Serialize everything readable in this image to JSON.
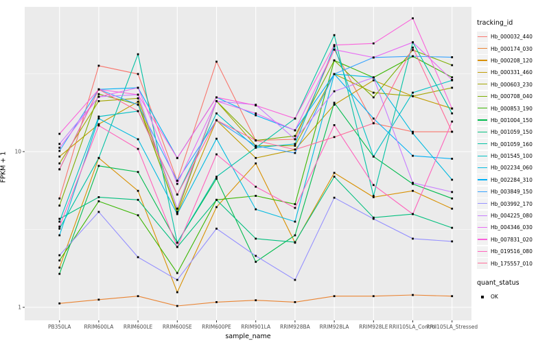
{
  "chart_data": {
    "type": "line",
    "title": "",
    "xlabel": "sample_name",
    "ylabel": "FPKM + 1",
    "y_scale": "log10",
    "y_ticks": [
      1,
      10
    ],
    "y_minor_gridlines": [
      3.162,
      31.62
    ],
    "ylim": [
      1,
      85
    ],
    "grid": true,
    "legend_position": "right",
    "legend_title": "tracking_id",
    "point_marker": "black-square",
    "categories": [
      "PB350LA",
      "RRIM600LA",
      "RRIM600LE",
      "RRIM600SE",
      "RRIM600PE",
      "RRIM901LA",
      "RRIM928BA",
      "RRIM928LA",
      "RRIM928LE",
      "RRII105LA_Control",
      "RRII105LA_Stressed"
    ],
    "series": [
      {
        "name": "Hb_000032_440",
        "color": "#F8766D",
        "values": [
          5.0,
          35.6,
          31.5,
          6.5,
          37.8,
          11.8,
          12.0,
          45.2,
          15.2,
          13.4,
          13.4
        ]
      },
      {
        "name": "Hb_000174_030",
        "color": "#EA8331",
        "values": [
          1.06,
          1.12,
          1.18,
          1.02,
          1.08,
          1.11,
          1.08,
          1.18,
          1.18,
          1.2,
          1.18
        ]
      },
      {
        "name": "Hb_000208_120",
        "color": "#D89000",
        "values": [
          1.8,
          9.1,
          5.6,
          1.25,
          4.4,
          8.4,
          2.6,
          7.3,
          5.1,
          5.6,
          4.3
        ]
      },
      {
        "name": "Hb_000331_460",
        "color": "#C09B00",
        "values": [
          9.3,
          15.0,
          20.9,
          4.0,
          15.9,
          9.1,
          10.3,
          20.0,
          28.7,
          22.7,
          18.9
        ]
      },
      {
        "name": "Hb_000603_230",
        "color": "#A3A500",
        "values": [
          8.4,
          21.1,
          22.0,
          4.3,
          21.1,
          10.9,
          10.9,
          31.5,
          23.9,
          22.7,
          25.7
        ]
      },
      {
        "name": "Hb_000708_040",
        "color": "#7CAE00",
        "values": [
          4.5,
          23.4,
          20.1,
          4.1,
          21.1,
          11.8,
          12.6,
          38.5,
          22.3,
          44.9,
          35.9
        ]
      },
      {
        "name": "Hb_000853_190",
        "color": "#39B600",
        "values": [
          2.0,
          4.8,
          3.9,
          1.66,
          4.9,
          5.2,
          4.6,
          38.5,
          29.9,
          40.9,
          30.0
        ]
      },
      {
        "name": "Hb_001004_150",
        "color": "#00BB4E",
        "values": [
          1.64,
          8.1,
          7.4,
          2.6,
          6.7,
          1.96,
          2.9,
          20.6,
          9.3,
          6.2,
          5.0
        ]
      },
      {
        "name": "Hb_001059_150",
        "color": "#00BF7D",
        "values": [
          3.7,
          5.1,
          4.9,
          2.44,
          4.9,
          2.76,
          2.62,
          6.9,
          3.77,
          3.97,
          3.24
        ]
      },
      {
        "name": "Hb_001059_160",
        "color": "#00C1A3",
        "values": [
          3.2,
          9.1,
          42.2,
          2.6,
          6.9,
          10.6,
          16.3,
          56.0,
          5.2,
          50.3,
          17.6
        ]
      },
      {
        "name": "Hb_001545_100",
        "color": "#00BFC4",
        "values": [
          3.55,
          16.8,
          18.2,
          5.3,
          17.6,
          10.6,
          11.2,
          47.4,
          9.3,
          23.9,
          28.7
        ]
      },
      {
        "name": "Hb_002234_060",
        "color": "#00BAE0",
        "values": [
          2.9,
          16.3,
          12.0,
          3.97,
          12.1,
          4.26,
          3.55,
          31.5,
          30.0,
          13.1,
          6.6
        ]
      },
      {
        "name": "Hb_002284_310",
        "color": "#00B0F6",
        "values": [
          7.7,
          25.1,
          25.7,
          9.1,
          22.3,
          17.1,
          13.7,
          31.5,
          16.3,
          9.4,
          9.0
        ]
      },
      {
        "name": "Hb_003849_150",
        "color": "#35A2FF",
        "values": [
          10.1,
          25.1,
          20.0,
          6.5,
          15.9,
          10.9,
          9.8,
          31.5,
          40.2,
          40.9,
          40.4
        ]
      },
      {
        "name": "Hb_003992_170",
        "color": "#9590FF",
        "values": [
          2.16,
          4.1,
          2.1,
          1.5,
          3.2,
          2.14,
          1.5,
          5.06,
          3.7,
          2.76,
          2.65
        ]
      },
      {
        "name": "Hb_004225_080",
        "color": "#C77CFF",
        "values": [
          11.2,
          22.5,
          23.2,
          4.3,
          21.1,
          20.0,
          12.0,
          24.4,
          29.9,
          6.3,
          5.5
        ]
      },
      {
        "name": "Hb_004346_030",
        "color": "#E76BF3",
        "values": [
          10.6,
          22.5,
          25.7,
          6.2,
          21.1,
          17.6,
          13.7,
          45.2,
          40.2,
          50.3,
          28.9
        ]
      },
      {
        "name": "Hb_007831_020",
        "color": "#FA62DB",
        "values": [
          13.0,
          25.1,
          23.2,
          9.1,
          22.3,
          19.8,
          16.3,
          48.3,
          49.5,
          71.8,
          18.9
        ]
      },
      {
        "name": "Hb_019516_080",
        "color": "#FF62BC",
        "values": [
          3.3,
          14.7,
          10.4,
          2.44,
          9.6,
          5.95,
          4.35,
          14.8,
          6.1,
          3.97,
          15.6
        ]
      },
      {
        "name": "Hb_175557_010",
        "color": "#FF6A98",
        "values": [
          7.7,
          25.1,
          18.2,
          5.3,
          15.9,
          11.8,
          10.3,
          12.4,
          15.2,
          46.6,
          13.4
        ]
      }
    ],
    "legend2": {
      "title": "quant_status",
      "items": [
        {
          "label": "OK",
          "marker": "black-square"
        }
      ]
    },
    "colors": {
      "panel_background": "#EBEBEB",
      "gridline": "#FFFFFF",
      "axis_text": "#4D4D4D",
      "tick_mark": "#333333",
      "point": "#000000",
      "legend_key_background": "#F2F2F2"
    }
  }
}
